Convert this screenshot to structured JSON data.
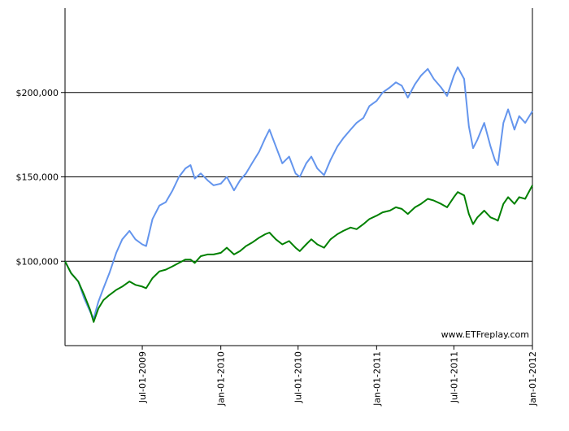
{
  "chart_data": {
    "type": "line",
    "title": "",
    "xlabel": "",
    "ylabel": "",
    "watermark": "www.ETFreplay.com",
    "grid": true,
    "ylim": [
      50000,
      250000
    ],
    "xlim": [
      "2009-01-01",
      "2012-01-01"
    ],
    "y_ticks": [
      {
        "value": 100000,
        "label": "$100,000"
      },
      {
        "value": 150000,
        "label": "$150,000"
      },
      {
        "value": 200000,
        "label": "$200,000"
      }
    ],
    "x_ticks": [
      {
        "value": "2009-07-01",
        "label": "Jul-01-2009"
      },
      {
        "value": "2010-01-01",
        "label": "Jan-01-2010"
      },
      {
        "value": "2010-07-01",
        "label": "Jul-01-2010"
      },
      {
        "value": "2011-01-01",
        "label": "Jan-01-2011"
      },
      {
        "value": "2011-07-01",
        "label": "Jul-01-2011"
      },
      {
        "value": "2012-01-01",
        "label": "Jan-01-2012"
      }
    ],
    "series": [
      {
        "color": "#6495ed",
        "points": [
          [
            "2009-01-01",
            100000
          ],
          [
            "2009-01-15",
            93000
          ],
          [
            "2009-02-01",
            88000
          ],
          [
            "2009-02-15",
            78000
          ],
          [
            "2009-03-01",
            70000
          ],
          [
            "2009-03-09",
            66000
          ],
          [
            "2009-03-20",
            76000
          ],
          [
            "2009-04-01",
            84000
          ],
          [
            "2009-04-15",
            93000
          ],
          [
            "2009-05-01",
            105000
          ],
          [
            "2009-05-15",
            113000
          ],
          [
            "2009-06-01",
            118000
          ],
          [
            "2009-06-15",
            113000
          ],
          [
            "2009-07-01",
            110000
          ],
          [
            "2009-07-10",
            109000
          ],
          [
            "2009-07-25",
            125000
          ],
          [
            "2009-08-10",
            133000
          ],
          [
            "2009-08-25",
            135000
          ],
          [
            "2009-09-10",
            142000
          ],
          [
            "2009-09-25",
            150000
          ],
          [
            "2009-10-10",
            155000
          ],
          [
            "2009-10-22",
            157000
          ],
          [
            "2009-11-01",
            149000
          ],
          [
            "2009-11-15",
            152000
          ],
          [
            "2009-12-01",
            148000
          ],
          [
            "2009-12-15",
            145000
          ],
          [
            "2010-01-01",
            146000
          ],
          [
            "2010-01-15",
            150000
          ],
          [
            "2010-02-01",
            142000
          ],
          [
            "2010-02-15",
            148000
          ],
          [
            "2010-03-01",
            152000
          ],
          [
            "2010-03-15",
            158000
          ],
          [
            "2010-04-01",
            165000
          ],
          [
            "2010-04-15",
            173000
          ],
          [
            "2010-04-25",
            178000
          ],
          [
            "2010-05-10",
            168000
          ],
          [
            "2010-05-25",
            158000
          ],
          [
            "2010-06-10",
            162000
          ],
          [
            "2010-06-25",
            152000
          ],
          [
            "2010-07-05",
            150000
          ],
          [
            "2010-07-20",
            158000
          ],
          [
            "2010-08-01",
            162000
          ],
          [
            "2010-08-15",
            155000
          ],
          [
            "2010-08-31",
            151000
          ],
          [
            "2010-09-15",
            160000
          ],
          [
            "2010-10-01",
            168000
          ],
          [
            "2010-10-15",
            173000
          ],
          [
            "2010-11-01",
            178000
          ],
          [
            "2010-11-15",
            182000
          ],
          [
            "2010-12-01",
            185000
          ],
          [
            "2010-12-15",
            192000
          ],
          [
            "2011-01-01",
            195000
          ],
          [
            "2011-01-15",
            200000
          ],
          [
            "2011-02-01",
            203000
          ],
          [
            "2011-02-15",
            206000
          ],
          [
            "2011-03-01",
            204000
          ],
          [
            "2011-03-15",
            197000
          ],
          [
            "2011-04-01",
            205000
          ],
          [
            "2011-04-15",
            210000
          ],
          [
            "2011-05-01",
            214000
          ],
          [
            "2011-05-15",
            208000
          ],
          [
            "2011-06-01",
            203000
          ],
          [
            "2011-06-15",
            198000
          ],
          [
            "2011-07-01",
            210000
          ],
          [
            "2011-07-10",
            215000
          ],
          [
            "2011-07-25",
            208000
          ],
          [
            "2011-08-05",
            180000
          ],
          [
            "2011-08-15",
            167000
          ],
          [
            "2011-08-25",
            172000
          ],
          [
            "2011-09-10",
            182000
          ],
          [
            "2011-09-25",
            168000
          ],
          [
            "2011-10-05",
            160000
          ],
          [
            "2011-10-12",
            157000
          ],
          [
            "2011-10-25",
            182000
          ],
          [
            "2011-11-05",
            190000
          ],
          [
            "2011-11-20",
            178000
          ],
          [
            "2011-12-01",
            186000
          ],
          [
            "2011-12-15",
            182000
          ],
          [
            "2012-01-01",
            189000
          ]
        ]
      },
      {
        "color": "#008000",
        "points": [
          [
            "2009-01-01",
            100000
          ],
          [
            "2009-01-15",
            93000
          ],
          [
            "2009-02-01",
            88000
          ],
          [
            "2009-02-15",
            80000
          ],
          [
            "2009-03-01",
            71000
          ],
          [
            "2009-03-09",
            64000
          ],
          [
            "2009-03-20",
            72000
          ],
          [
            "2009-04-01",
            77000
          ],
          [
            "2009-04-15",
            80000
          ],
          [
            "2009-05-01",
            83000
          ],
          [
            "2009-05-15",
            85000
          ],
          [
            "2009-06-01",
            88000
          ],
          [
            "2009-06-15",
            86000
          ],
          [
            "2009-07-01",
            85000
          ],
          [
            "2009-07-10",
            84000
          ],
          [
            "2009-07-25",
            90000
          ],
          [
            "2009-08-10",
            94000
          ],
          [
            "2009-08-25",
            95000
          ],
          [
            "2009-09-10",
            97000
          ],
          [
            "2009-09-25",
            99000
          ],
          [
            "2009-10-10",
            101000
          ],
          [
            "2009-10-22",
            101000
          ],
          [
            "2009-11-01",
            99000
          ],
          [
            "2009-11-15",
            103000
          ],
          [
            "2009-12-01",
            104000
          ],
          [
            "2009-12-15",
            104000
          ],
          [
            "2010-01-01",
            105000
          ],
          [
            "2010-01-15",
            108000
          ],
          [
            "2010-02-01",
            104000
          ],
          [
            "2010-02-15",
            106000
          ],
          [
            "2010-03-01",
            109000
          ],
          [
            "2010-03-15",
            111000
          ],
          [
            "2010-04-01",
            114000
          ],
          [
            "2010-04-15",
            116000
          ],
          [
            "2010-04-25",
            117000
          ],
          [
            "2010-05-10",
            113000
          ],
          [
            "2010-05-25",
            110000
          ],
          [
            "2010-06-10",
            112000
          ],
          [
            "2010-06-25",
            108000
          ],
          [
            "2010-07-05",
            106000
          ],
          [
            "2010-07-20",
            110000
          ],
          [
            "2010-08-01",
            113000
          ],
          [
            "2010-08-15",
            110000
          ],
          [
            "2010-08-31",
            108000
          ],
          [
            "2010-09-15",
            113000
          ],
          [
            "2010-10-01",
            116000
          ],
          [
            "2010-10-15",
            118000
          ],
          [
            "2010-11-01",
            120000
          ],
          [
            "2010-11-15",
            119000
          ],
          [
            "2010-12-01",
            122000
          ],
          [
            "2010-12-15",
            125000
          ],
          [
            "2011-01-01",
            127000
          ],
          [
            "2011-01-15",
            129000
          ],
          [
            "2011-02-01",
            130000
          ],
          [
            "2011-02-15",
            132000
          ],
          [
            "2011-03-01",
            131000
          ],
          [
            "2011-03-15",
            128000
          ],
          [
            "2011-04-01",
            132000
          ],
          [
            "2011-04-15",
            134000
          ],
          [
            "2011-05-01",
            137000
          ],
          [
            "2011-05-15",
            136000
          ],
          [
            "2011-06-01",
            134000
          ],
          [
            "2011-06-15",
            132000
          ],
          [
            "2011-07-01",
            138000
          ],
          [
            "2011-07-10",
            141000
          ],
          [
            "2011-07-25",
            139000
          ],
          [
            "2011-08-05",
            128000
          ],
          [
            "2011-08-15",
            122000
          ],
          [
            "2011-08-25",
            126000
          ],
          [
            "2011-09-10",
            130000
          ],
          [
            "2011-09-25",
            126000
          ],
          [
            "2011-10-05",
            125000
          ],
          [
            "2011-10-12",
            124000
          ],
          [
            "2011-10-25",
            134000
          ],
          [
            "2011-11-05",
            138000
          ],
          [
            "2011-11-20",
            134000
          ],
          [
            "2011-12-01",
            138000
          ],
          [
            "2011-12-15",
            137000
          ],
          [
            "2012-01-01",
            145000
          ]
        ]
      }
    ]
  }
}
